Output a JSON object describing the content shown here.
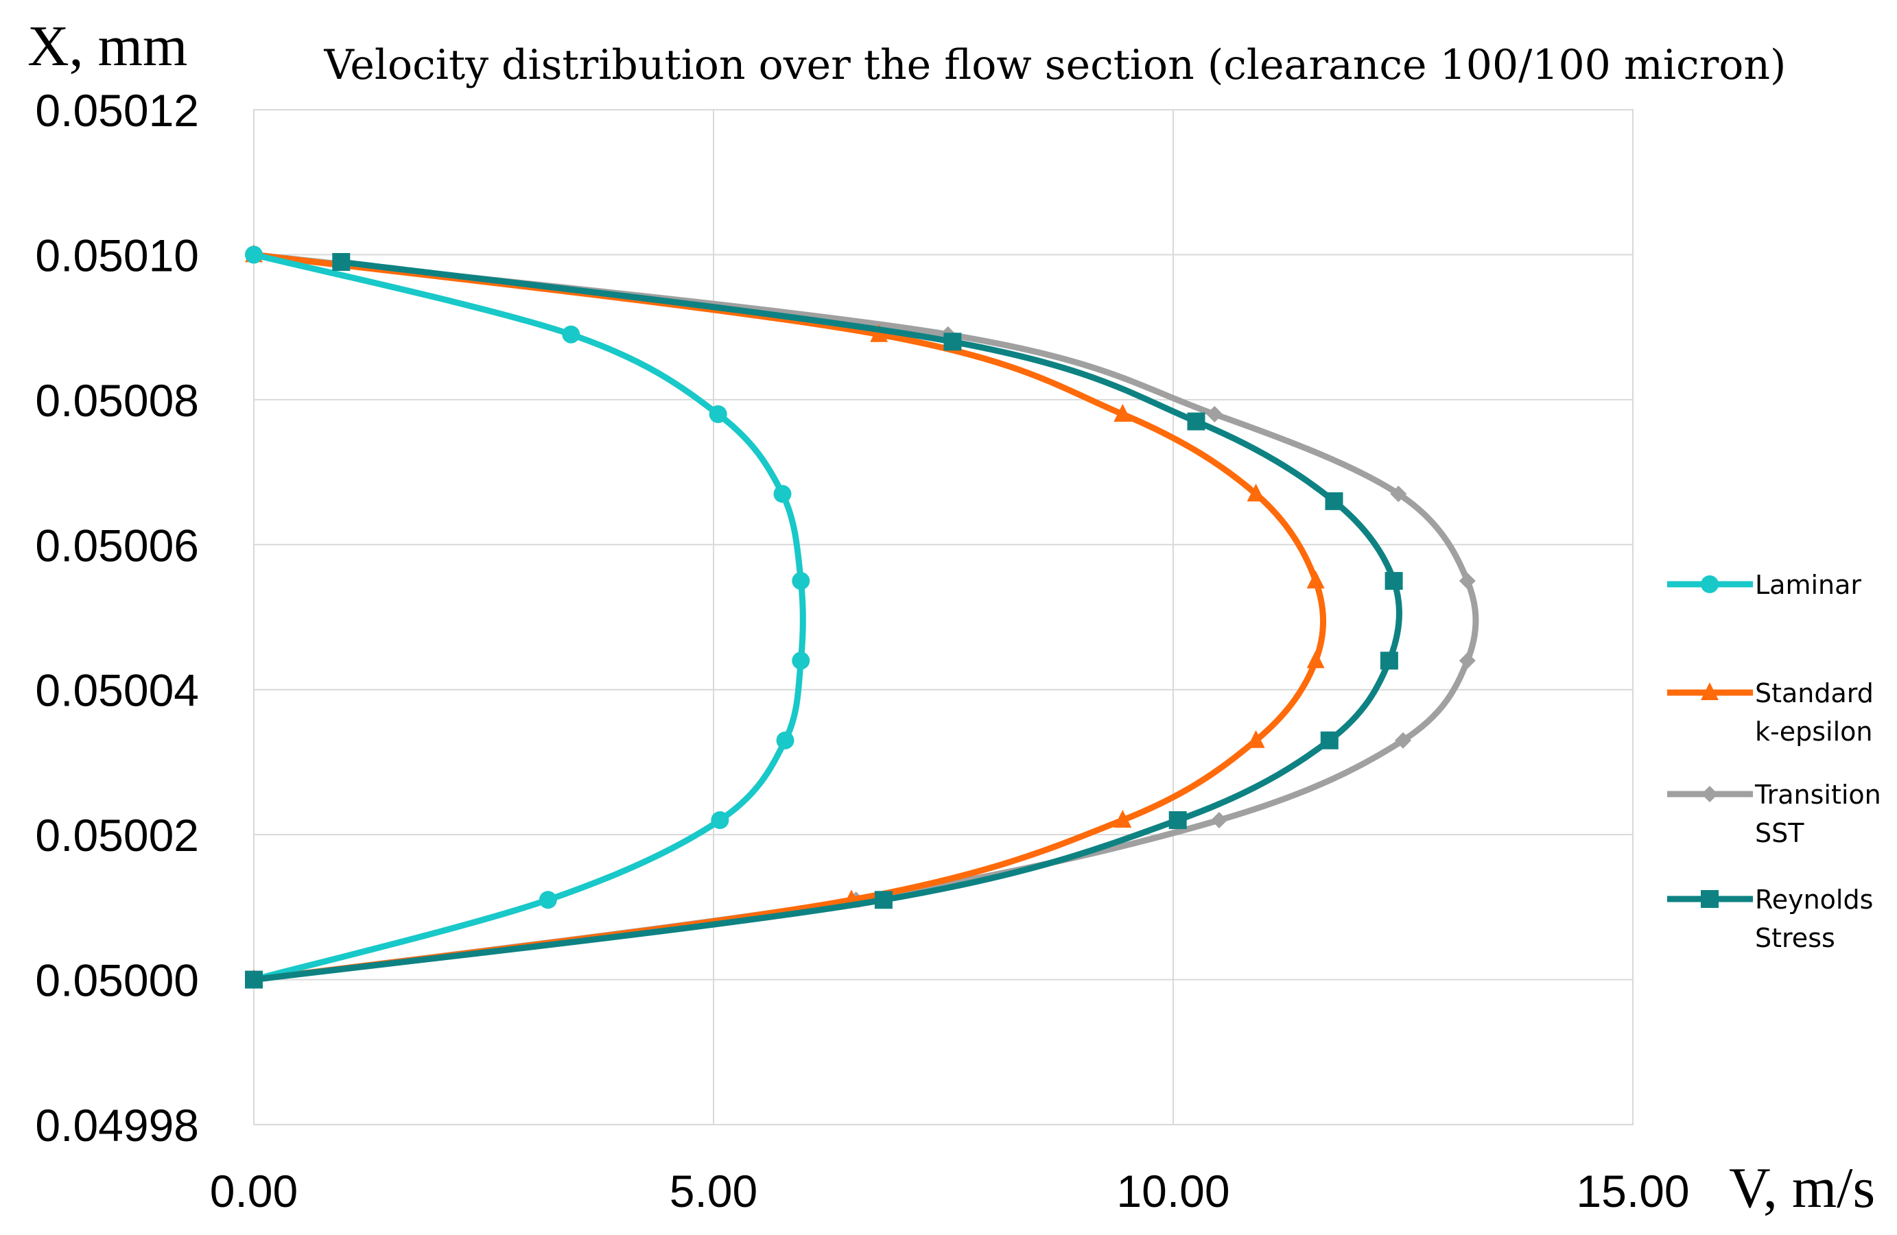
{
  "chart_data": {
    "type": "line",
    "title": "Velocity distribution over the flow section (clearance 100/100 micron)",
    "xlabel": "V, m/s",
    "ylabel": "X, mm",
    "xlim": [
      0,
      15
    ],
    "ylim": [
      0.04998,
      0.05012
    ],
    "x_ticks": [
      "0.00",
      "5.00",
      "10.00",
      "15.00"
    ],
    "y_ticks": [
      "0.04998",
      "0.05000",
      "0.05002",
      "0.05004",
      "0.05006",
      "0.05008",
      "0.05010",
      "0.05012"
    ],
    "x_tick_values": [
      0,
      5,
      10,
      15
    ],
    "y_tick_values": [
      0.04998,
      0.05,
      0.05002,
      0.05004,
      0.05006,
      0.05008,
      0.0501,
      0.05012
    ],
    "grid": true,
    "legend_position": "right",
    "series": [
      {
        "name": "Laminar",
        "color": "#19c8c8",
        "marker": "circle",
        "points": [
          [
            0.0,
            0.0501
          ],
          [
            3.45,
            0.050089
          ],
          [
            5.05,
            0.050078
          ],
          [
            5.75,
            0.050067
          ],
          [
            5.95,
            0.050055
          ],
          [
            5.95,
            0.050044
          ],
          [
            5.78,
            0.050033
          ],
          [
            5.07,
            0.050022
          ],
          [
            3.2,
            0.050011
          ],
          [
            0.0,
            0.05
          ]
        ]
      },
      {
        "name": "Standard k-epsilon",
        "color": "#ff6a0a",
        "marker": "triangle",
        "points": [
          [
            0.0,
            0.0501
          ],
          [
            6.8,
            0.050089
          ],
          [
            9.45,
            0.050078
          ],
          [
            10.9,
            0.050067
          ],
          [
            11.55,
            0.050055
          ],
          [
            11.55,
            0.050044
          ],
          [
            10.9,
            0.050033
          ],
          [
            9.45,
            0.050022
          ],
          [
            6.5,
            0.050011
          ],
          [
            0.0,
            0.05
          ]
        ]
      },
      {
        "name": "Transition SST",
        "color": "#a0a0a0",
        "marker": "diamond",
        "points": [
          [
            0.0,
            0.0501
          ],
          [
            7.55,
            0.050089
          ],
          [
            10.45,
            0.050078
          ],
          [
            12.45,
            0.050067
          ],
          [
            13.2,
            0.050055
          ],
          [
            13.2,
            0.050044
          ],
          [
            12.5,
            0.050033
          ],
          [
            10.5,
            0.050022
          ],
          [
            6.55,
            0.050011
          ],
          [
            0.0,
            0.05
          ]
        ]
      },
      {
        "name": "Reynolds Stress",
        "color": "#0e8282",
        "marker": "square",
        "points": [
          [
            0.95,
            0.050099
          ],
          [
            7.6,
            0.050088
          ],
          [
            10.25,
            0.050077
          ],
          [
            11.75,
            0.050066
          ],
          [
            12.4,
            0.050055
          ],
          [
            12.35,
            0.050044
          ],
          [
            11.7,
            0.050033
          ],
          [
            10.05,
            0.050022
          ],
          [
            6.85,
            0.050011
          ],
          [
            0.0,
            0.05
          ]
        ]
      }
    ],
    "legend_labels": [
      [
        "Laminar"
      ],
      [
        "Standard",
        "k-epsilon"
      ],
      [
        "Transition",
        "SST"
      ],
      [
        "Reynolds",
        "Stress"
      ]
    ]
  }
}
